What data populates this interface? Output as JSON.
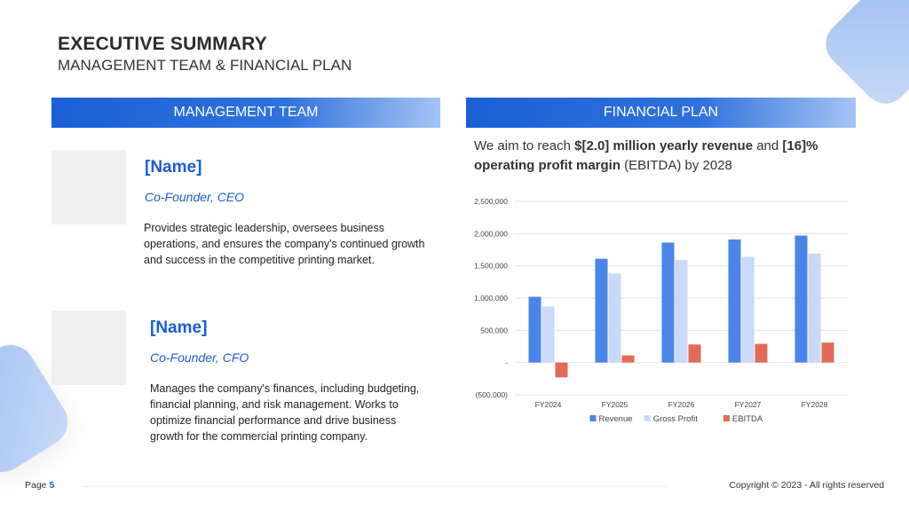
{
  "header": {
    "title": "EXECUTIVE SUMMARY",
    "subtitle": "MANAGEMENT TEAM & FINANCIAL PLAN"
  },
  "management": {
    "band_label": "MANAGEMENT TEAM",
    "members": [
      {
        "name": "[Name]",
        "role": "Co-Founder, CEO",
        "description": "Provides strategic leadership, oversees business operations, and ensures the company's continued growth and success in the competitive printing market."
      },
      {
        "name": "[Name]",
        "role": "Co-Founder, CFO",
        "description": "Manages the company's finances, including budgeting, financial planning, and risk management. Works to optimize financial performance and drive business growth for the commercial printing company."
      }
    ]
  },
  "financial": {
    "band_label": "FINANCIAL PLAN",
    "statement_prefix": "We aim to reach ",
    "statement_bold1": "$[2.0] million yearly revenue",
    "statement_mid": " and ",
    "statement_bold2": "[16]% operating profit margin",
    "statement_suffix": " (EBITDA) by 2028"
  },
  "chart_data": {
    "type": "bar",
    "categories": [
      "FY2024",
      "FY2025",
      "FY2026",
      "FY2027",
      "FY2028"
    ],
    "series": [
      {
        "name": "Revenue",
        "color": "#4a86e8",
        "values": [
          1020000,
          1610000,
          1860000,
          1910000,
          1970000
        ]
      },
      {
        "name": "Gross Profit",
        "color": "#c9daf8",
        "values": [
          870000,
          1380000,
          1590000,
          1640000,
          1690000
        ]
      },
      {
        "name": "EBITDA",
        "color": "#e06c57",
        "values": [
          -230000,
          110000,
          280000,
          290000,
          310000
        ]
      }
    ],
    "ylim": [
      -500000,
      2500000
    ],
    "yticks": [
      -500000,
      0,
      500000,
      1000000,
      1500000,
      2000000,
      2500000
    ],
    "ytick_labels": [
      "(500,000)",
      "-",
      "500,000",
      "1,000,000",
      "1,500,000",
      "2,000,000",
      "2,500,000"
    ],
    "grid": true,
    "legend": "bottom"
  },
  "footer": {
    "page_label": "Page ",
    "page_number": "5",
    "copyright": "Copyright © 2023 - All rights reserved"
  }
}
